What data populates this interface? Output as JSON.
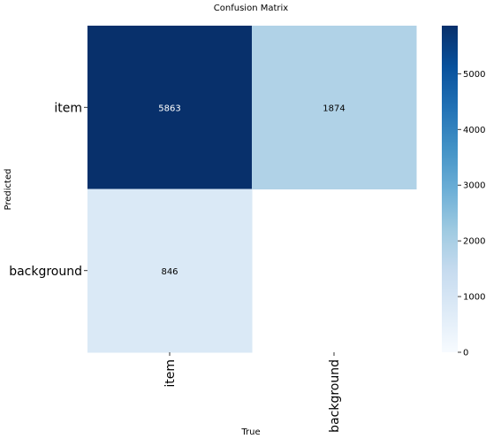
{
  "chart_data": {
    "type": "heatmap",
    "title": "Confusion Matrix",
    "xlabel": "True",
    "ylabel": "Predicted",
    "x_categories": [
      "item",
      "background"
    ],
    "y_categories": [
      "item",
      "background"
    ],
    "values": [
      [
        5863,
        1874
      ],
      [
        846,
        null
      ]
    ],
    "value_labels": [
      [
        "5863",
        "1874"
      ],
      [
        "846",
        ""
      ]
    ],
    "colorbar": {
      "range": [
        0,
        5863
      ],
      "ticks": [
        0,
        1000,
        2000,
        3000,
        4000,
        5000
      ],
      "tick_labels": [
        "0",
        "1000",
        "2000",
        "3000",
        "4000",
        "5000"
      ]
    },
    "colormap": "Blues",
    "colormap_stops": [
      "#f7fbff",
      "#deebf7",
      "#c6dbef",
      "#9ecae1",
      "#6baed6",
      "#4292c6",
      "#2171b5",
      "#08519c",
      "#08306b"
    ]
  }
}
